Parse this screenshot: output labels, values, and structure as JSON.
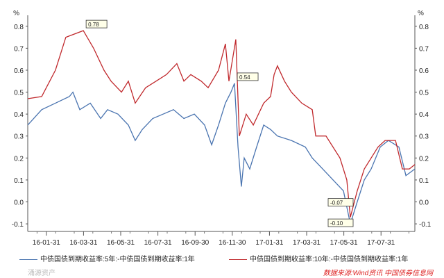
{
  "chart_data": {
    "type": "line",
    "title": "",
    "yunit": "%",
    "ylim": [
      -0.125,
      0.85
    ],
    "yticks": [
      -0.1,
      0,
      0.1,
      0.2,
      0.3,
      0.4,
      0.5,
      0.6,
      0.7,
      0.8
    ],
    "ytick_labels": [
      "-0.1",
      "0.0",
      "0.1",
      "0.2",
      "0.3",
      "0.4",
      "0.5",
      "0.6",
      "0.7",
      "0.8"
    ],
    "x_unit": "months since 2016-01-01",
    "xlim": [
      0,
      20.82
    ],
    "xticks": [
      1,
      3,
      5,
      7,
      9,
      11,
      13,
      15,
      17,
      19
    ],
    "xtick_labels": [
      "16-01-31",
      "16-03-31",
      "16-05-31",
      "16-07-31",
      "16-09-30",
      "16-11-30",
      "17-01-31",
      "17-03-31",
      "17-05-31",
      "17-07-31"
    ],
    "series": [
      {
        "name": "中债国债到期收益率:5年:-中债国债到期收益率:1年",
        "color": "#4a74b0",
        "x": [
          0,
          0.75,
          1.49,
          2.24,
          2.43,
          2.8,
          3.36,
          3.92,
          4.29,
          4.85,
          5.41,
          5.78,
          6.16,
          6.72,
          7.28,
          7.84,
          8.4,
          8.96,
          9.51,
          9.89,
          10.26,
          10.63,
          10.93,
          11.12,
          11.31,
          11.49,
          11.64,
          11.94,
          12.31,
          12.69,
          13.06,
          13.43,
          14.18,
          14.93,
          15.3,
          15.86,
          16.42,
          16.98,
          17.35,
          17.72,
          18.1,
          18.47,
          18.96,
          19.4,
          19.96,
          20.34,
          20.82
        ],
        "y": [
          0.35,
          0.42,
          0.45,
          0.48,
          0.5,
          0.42,
          0.45,
          0.38,
          0.42,
          0.4,
          0.35,
          0.28,
          0.33,
          0.38,
          0.4,
          0.42,
          0.38,
          0.4,
          0.35,
          0.26,
          0.35,
          0.45,
          0.5,
          0.54,
          0.25,
          0.07,
          0.2,
          0.15,
          0.25,
          0.35,
          0.33,
          0.3,
          0.28,
          0.25,
          0.2,
          0.15,
          0.1,
          0.05,
          -0.1,
          0.0,
          0.1,
          0.15,
          0.25,
          0.28,
          0.25,
          0.12,
          0.15
        ]
      },
      {
        "name": "中债国债到期收益率:10年:-中债国债到期收益率:1年",
        "color": "#c0282c",
        "x": [
          0,
          0.75,
          1.49,
          2.05,
          2.99,
          3.54,
          4.1,
          4.48,
          5.04,
          5.41,
          5.78,
          6.34,
          6.9,
          7.46,
          8.02,
          8.4,
          8.77,
          9.33,
          9.7,
          10.26,
          10.63,
          10.82,
          11.19,
          11.38,
          11.75,
          12.13,
          12.69,
          13.06,
          13.25,
          13.43,
          13.81,
          14.18,
          14.74,
          15.3,
          15.49,
          16.04,
          16.79,
          17.16,
          17.35,
          17.72,
          18.1,
          18.47,
          18.84,
          19.22,
          19.78,
          20.15,
          20.52,
          20.82
        ],
        "y": [
          0.47,
          0.48,
          0.6,
          0.75,
          0.78,
          0.7,
          0.6,
          0.55,
          0.5,
          0.55,
          0.45,
          0.52,
          0.55,
          0.58,
          0.63,
          0.55,
          0.58,
          0.55,
          0.52,
          0.6,
          0.72,
          0.55,
          0.74,
          0.3,
          0.4,
          0.35,
          0.45,
          0.48,
          0.58,
          0.62,
          0.55,
          0.5,
          0.45,
          0.42,
          0.3,
          0.3,
          0.2,
          0.1,
          -0.07,
          0.05,
          0.15,
          0.2,
          0.25,
          0.28,
          0.28,
          0.15,
          0.15,
          0.17
        ]
      }
    ],
    "annotations": [
      {
        "text": "0.78",
        "x": 2.99,
        "y": 0.78,
        "series": 1
      },
      {
        "text": "0.54",
        "x": 11.12,
        "y": 0.54,
        "series": 0
      },
      {
        "text": "-0.07",
        "x": 17.35,
        "y": -0.07,
        "series": 1
      },
      {
        "text": "-0.10",
        "x": 17.35,
        "y": -0.1,
        "series": 0
      }
    ],
    "legend_position": "bottom"
  },
  "source": "数据来源:Wind资讯 中国债券信息网",
  "watermark": "涌源资产"
}
